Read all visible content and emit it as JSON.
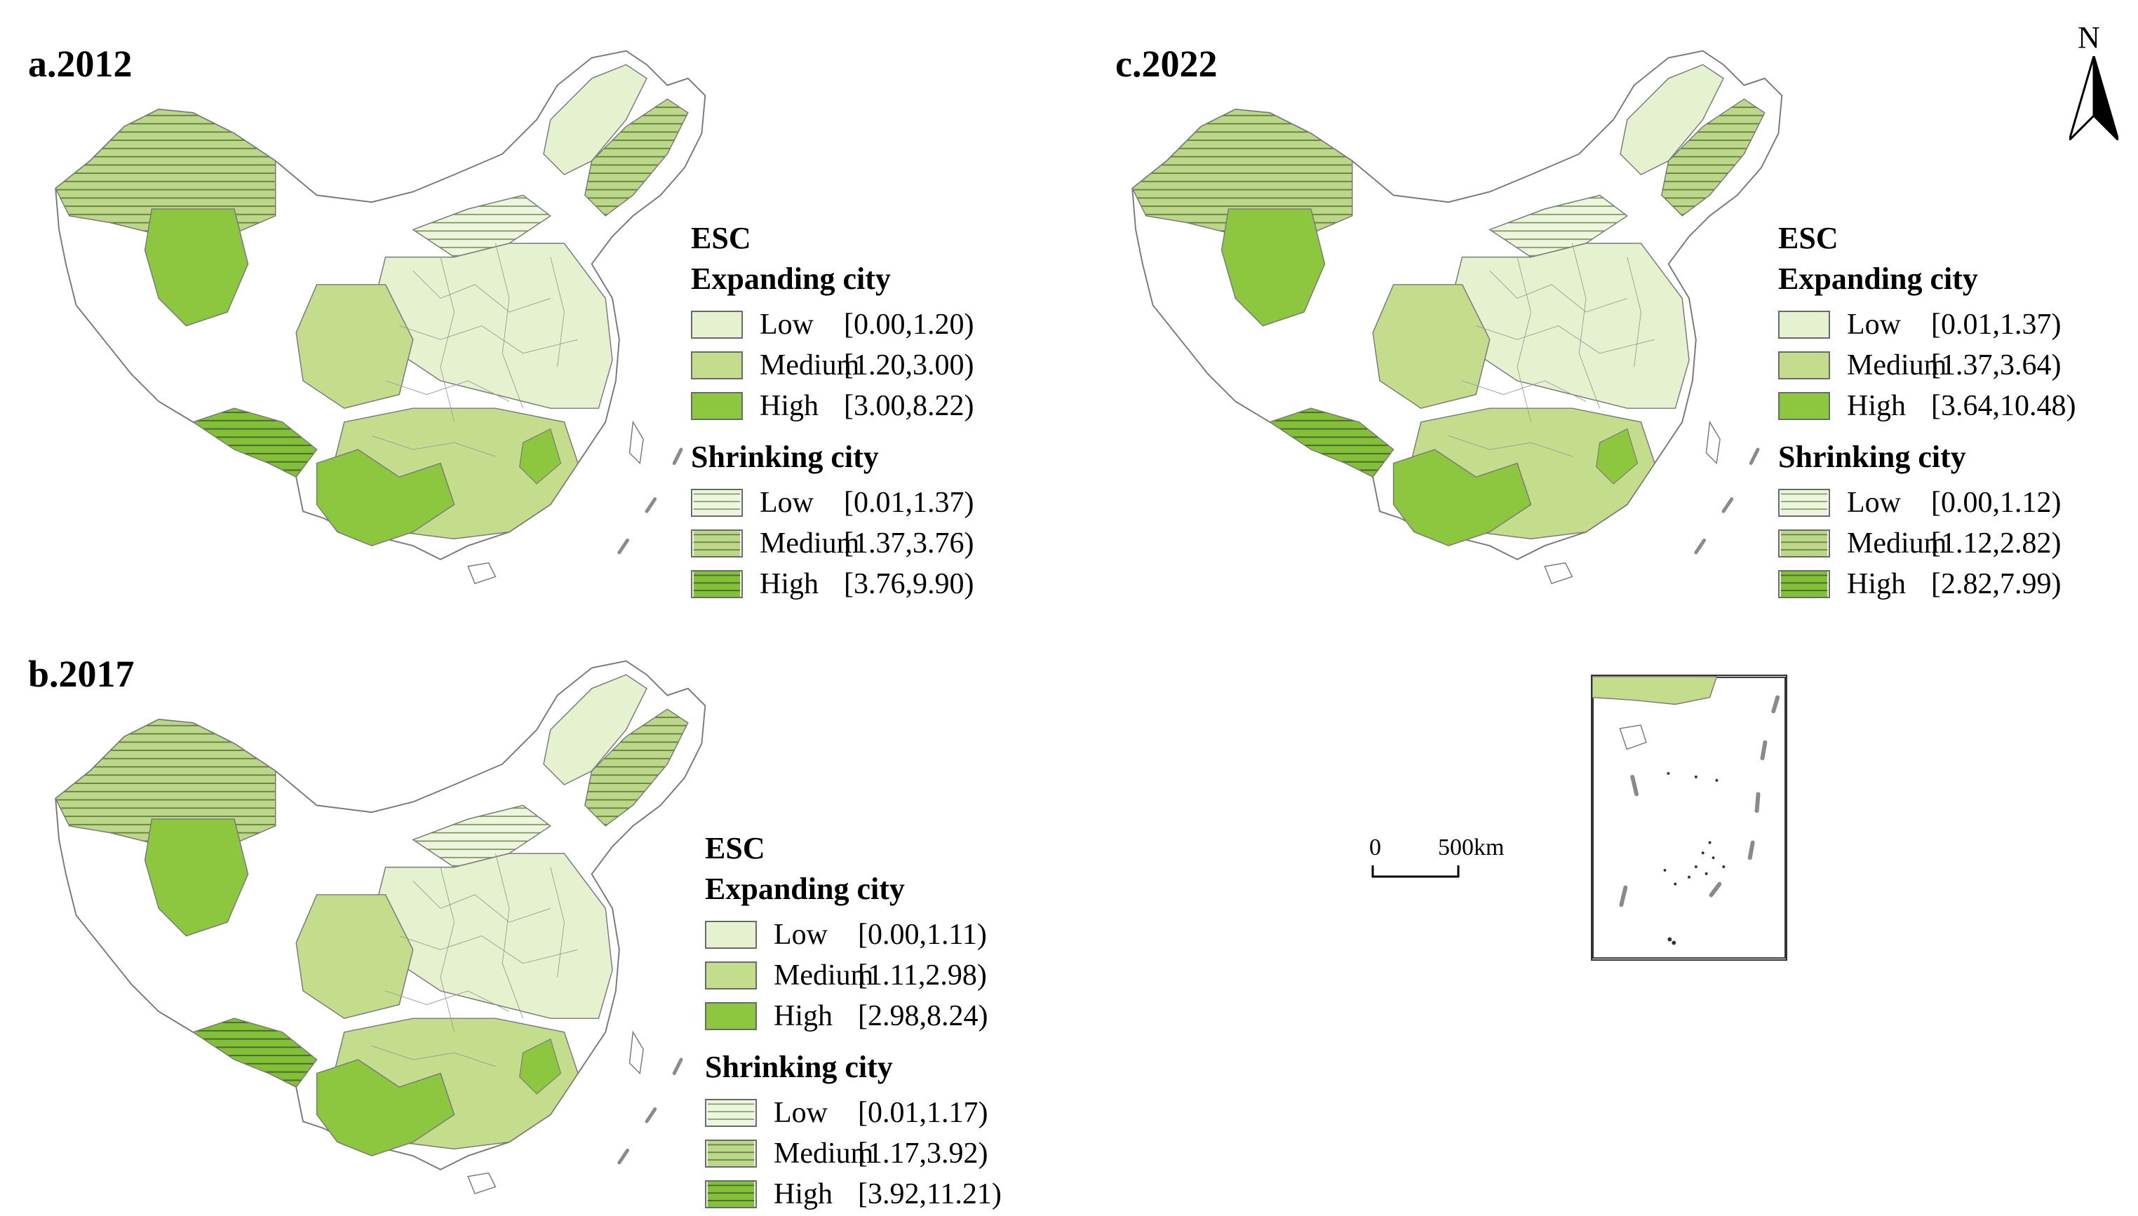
{
  "colors": {
    "exp_low": "#e6f1cf",
    "exp_medium": "#c4dd8c",
    "exp_high": "#8dc63f",
    "hatch_line": "#5e7e3a",
    "outline": "#7a7a7a"
  },
  "panels": [
    {
      "id": "a",
      "title": "a.2012",
      "legend": {
        "heading": "ESC",
        "expanding_title": "Expanding city",
        "expanding": [
          {
            "class": "Low",
            "range": "[0.00,1.20)"
          },
          {
            "class": "Medium",
            "range": "[1.20,3.00)"
          },
          {
            "class": "High",
            "range": "[3.00,8.22)"
          }
        ],
        "shrinking_title": "Shrinking city",
        "shrinking": [
          {
            "class": "Low",
            "range": "[0.01,1.37)"
          },
          {
            "class": "Medium",
            "range": "[1.37,3.76)"
          },
          {
            "class": "High",
            "range": "[3.76,9.90)"
          }
        ]
      }
    },
    {
      "id": "b",
      "title": "b.2017",
      "legend": {
        "heading": "ESC",
        "expanding_title": "Expanding city",
        "expanding": [
          {
            "class": "Low",
            "range": "[0.00,1.11)"
          },
          {
            "class": "Medium",
            "range": "[1.11,2.98)"
          },
          {
            "class": "High",
            "range": "[2.98,8.24)"
          }
        ],
        "shrinking_title": "Shrinking city",
        "shrinking": [
          {
            "class": "Low",
            "range": "[0.01,1.17)"
          },
          {
            "class": "Medium",
            "range": "[1.17,3.92)"
          },
          {
            "class": "High",
            "range": "[3.92,11.21)"
          }
        ]
      }
    },
    {
      "id": "c",
      "title": "c.2022",
      "legend": {
        "heading": "ESC",
        "expanding_title": "Expanding city",
        "expanding": [
          {
            "class": "Low",
            "range": "[0.01,1.37)"
          },
          {
            "class": "Medium",
            "range": "[1.37,3.64)"
          },
          {
            "class": "High",
            "range": "[3.64,10.48)"
          }
        ],
        "shrinking_title": "Shrinking city",
        "shrinking": [
          {
            "class": "Low",
            "range": "[0.00,1.12)"
          },
          {
            "class": "Medium",
            "range": "[1.12,2.82)"
          },
          {
            "class": "High",
            "range": "[2.82,7.99)"
          }
        ]
      }
    }
  ],
  "north_arrow": {
    "label": "N"
  },
  "scale_bar": {
    "zero": "0",
    "end": "500km"
  }
}
